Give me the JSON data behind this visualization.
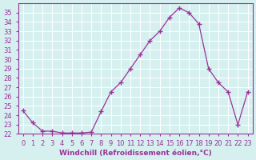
{
  "hours": [
    0,
    1,
    2,
    3,
    4,
    5,
    6,
    7,
    8,
    9,
    10,
    11,
    12,
    13,
    14,
    15,
    16,
    17,
    18,
    19,
    20,
    21,
    22,
    23
  ],
  "values": [
    24.5,
    23.2,
    22.3,
    22.3,
    22.1,
    22.1,
    22.1,
    22.2,
    24.4,
    26.5,
    27.5,
    29.0,
    30.5,
    32.0,
    33.0,
    34.5,
    35.5,
    35.0,
    33.8,
    29.0,
    27.5,
    26.5,
    23.0,
    26.5
  ],
  "line_color": "#993399",
  "marker": "+",
  "bg_color": "#d6f0f0",
  "grid_color": "#ffffff",
  "tick_color": "#993399",
  "label_color": "#993399",
  "xlabel": "Windchill (Refroidissement éolien,°C)",
  "ylim": [
    22,
    36
  ],
  "yticks": [
    22,
    23,
    24,
    25,
    26,
    27,
    28,
    29,
    30,
    31,
    32,
    33,
    34,
    35
  ],
  "axis_fontsize": 6.5,
  "tick_fontsize": 6
}
